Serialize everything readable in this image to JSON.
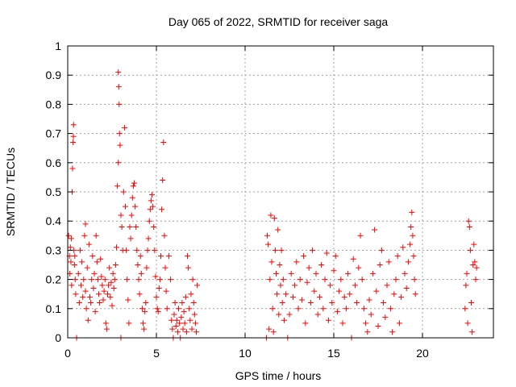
{
  "chart_data": {
    "type": "scatter",
    "title": "Day 065 of 2022, SRMTID for receiver saga",
    "xlabel": "GPS time / hours",
    "ylabel": "SRMTID / TECUs",
    "xlim": [
      0,
      24
    ],
    "ylim": [
      0,
      1
    ],
    "xticks": [
      0,
      5,
      10,
      15,
      20
    ],
    "yticks": [
      0,
      0.1,
      0.2,
      0.3,
      0.4,
      0.5,
      0.6,
      0.7,
      0.8,
      0.9,
      1
    ],
    "xtick_labels": [
      "0",
      "5",
      "10",
      "15",
      "20"
    ],
    "ytick_labels": [
      "0",
      "0.1",
      "0.2",
      "0.3",
      "0.4",
      "0.5",
      "0.6",
      "0.7",
      "0.8",
      "0.9",
      "1"
    ],
    "grid": true,
    "marker": "+",
    "color": "#ff0000",
    "series": [
      {
        "name": "SRMTID",
        "points": [
          [
            0.05,
            0.35
          ],
          [
            0.1,
            0.28
          ],
          [
            0.12,
            0.22
          ],
          [
            0.15,
            0.31
          ],
          [
            0.18,
            0.26
          ],
          [
            0.2,
            0.34
          ],
          [
            0.22,
            0.18
          ],
          [
            0.25,
            0.5
          ],
          [
            0.27,
            0.58
          ],
          [
            0.3,
            0.67
          ],
          [
            0.32,
            0.69
          ],
          [
            0.33,
            0.73
          ],
          [
            0.35,
            0.3
          ],
          [
            0.38,
            0.25
          ],
          [
            0.4,
            0.28
          ],
          [
            0.42,
            0.2
          ],
          [
            0.45,
            0.15
          ],
          [
            0.5,
            0.0
          ],
          [
            0.6,
            0.22
          ],
          [
            0.65,
            0.12
          ],
          [
            0.7,
            0.3
          ],
          [
            0.75,
            0.18
          ],
          [
            0.8,
            0.26
          ],
          [
            0.85,
            0.14
          ],
          [
            0.9,
            0.2
          ],
          [
            0.95,
            0.35
          ],
          [
            1.0,
            0.39
          ],
          [
            1.0,
            0.16
          ],
          [
            1.05,
            0.1
          ],
          [
            1.1,
            0.24
          ],
          [
            1.15,
            0.06
          ],
          [
            1.2,
            0.32
          ],
          [
            1.25,
            0.14
          ],
          [
            1.3,
            0.12
          ],
          [
            1.35,
            0.2
          ],
          [
            1.4,
            0.28
          ],
          [
            1.45,
            0.17
          ],
          [
            1.5,
            0.22
          ],
          [
            1.55,
            0.09
          ],
          [
            1.6,
            0.35
          ],
          [
            1.65,
            0.26
          ],
          [
            1.7,
            0.2
          ],
          [
            1.75,
            0.15
          ],
          [
            1.8,
            0.12
          ],
          [
            1.85,
            0.27
          ],
          [
            1.9,
            0.21
          ],
          [
            1.95,
            0.18
          ],
          [
            2.0,
            0.13
          ],
          [
            2.05,
            0.16
          ],
          [
            2.1,
            0.2
          ],
          [
            2.15,
            0.05
          ],
          [
            2.2,
            0.03
          ],
          [
            2.25,
            0.15
          ],
          [
            2.3,
            0.18
          ],
          [
            2.35,
            0.24
          ],
          [
            2.4,
            0.14
          ],
          [
            2.45,
            0.19
          ],
          [
            2.5,
            0.11
          ],
          [
            2.55,
            0.22
          ],
          [
            2.6,
            0.17
          ],
          [
            2.65,
            0.2
          ],
          [
            2.7,
            0.25
          ],
          [
            2.75,
            0.31
          ],
          [
            2.8,
            0.52
          ],
          [
            2.85,
            0.6
          ],
          [
            2.85,
            0.91
          ],
          [
            2.88,
            0.86
          ],
          [
            2.9,
            0.8
          ],
          [
            2.92,
            0.7
          ],
          [
            2.95,
            0.66
          ],
          [
            3.0,
            0.42
          ],
          [
            3.0,
            0.0
          ],
          [
            3.05,
            0.38
          ],
          [
            3.1,
            0.3
          ],
          [
            3.15,
            0.5
          ],
          [
            3.2,
            0.72
          ],
          [
            3.25,
            0.45
          ],
          [
            3.3,
            0.3
          ],
          [
            3.35,
            0.2
          ],
          [
            3.4,
            0.13
          ],
          [
            3.45,
            0.05
          ],
          [
            3.5,
            0.38
          ],
          [
            3.55,
            0.34
          ],
          [
            3.6,
            0.42
          ],
          [
            3.65,
            0.48
          ],
          [
            3.7,
            0.52
          ],
          [
            3.75,
            0.53
          ],
          [
            3.8,
            0.45
          ],
          [
            3.85,
            0.38
          ],
          [
            3.9,
            0.3
          ],
          [
            3.95,
            0.25
          ],
          [
            4.0,
            0.2
          ],
          [
            4.05,
            0.15
          ],
          [
            4.1,
            0.28
          ],
          [
            4.15,
            0.22
          ],
          [
            4.2,
            0.1
          ],
          [
            4.25,
            0.05
          ],
          [
            4.3,
            0.03
          ],
          [
            4.35,
            0.09
          ],
          [
            4.4,
            0.12
          ],
          [
            4.45,
            0.24
          ],
          [
            4.5,
            0.3
          ],
          [
            4.55,
            0.34
          ],
          [
            4.6,
            0.4
          ],
          [
            4.65,
            0.44
          ],
          [
            4.7,
            0.47
          ],
          [
            4.75,
            0.49
          ],
          [
            4.8,
            0.45
          ],
          [
            4.85,
            0.38
          ],
          [
            4.9,
            0.3
          ],
          [
            4.95,
            0.21
          ],
          [
            5.0,
            0.14
          ],
          [
            5.05,
            0.1
          ],
          [
            5.1,
            0.09
          ],
          [
            5.15,
            0.17
          ],
          [
            5.2,
            0.2
          ],
          [
            5.25,
            0.28
          ],
          [
            5.3,
            0.44
          ],
          [
            5.35,
            0.54
          ],
          [
            5.4,
            0.67
          ],
          [
            5.45,
            0.35
          ],
          [
            5.5,
            0.24
          ],
          [
            5.55,
            0.16
          ],
          [
            5.6,
            0.1
          ],
          [
            5.7,
            0.28
          ],
          [
            5.8,
            0.2
          ],
          [
            5.85,
            0.06
          ],
          [
            5.9,
            0.03
          ],
          [
            5.95,
            0.0
          ],
          [
            6.0,
            0.08
          ],
          [
            6.05,
            0.12
          ],
          [
            6.1,
            0.04
          ],
          [
            6.15,
            0.06
          ],
          [
            6.2,
            0.02
          ],
          [
            6.25,
            0.1
          ],
          [
            6.3,
            0.05
          ],
          [
            6.35,
            0.0
          ],
          [
            6.4,
            0.07
          ],
          [
            6.45,
            0.12
          ],
          [
            6.5,
            0.03
          ],
          [
            6.55,
            0.09
          ],
          [
            6.6,
            0.05
          ],
          [
            6.65,
            0.14
          ],
          [
            6.7,
            0.02
          ],
          [
            6.75,
            0.28
          ],
          [
            6.8,
            0.24
          ],
          [
            6.85,
            0.1
          ],
          [
            6.9,
            0.06
          ],
          [
            6.95,
            0.15
          ],
          [
            7.0,
            0.03
          ],
          [
            7.05,
            0.2
          ],
          [
            7.1,
            0.12
          ],
          [
            7.15,
            0.08
          ],
          [
            7.2,
            0.05
          ],
          [
            7.25,
            0.02
          ],
          [
            7.3,
            0.18
          ],
          [
            11.2,
            0.0
          ],
          [
            11.25,
            0.35
          ],
          [
            11.3,
            0.32
          ],
          [
            11.35,
            0.03
          ],
          [
            11.4,
            0.2
          ],
          [
            11.45,
            0.42
          ],
          [
            11.5,
            0.26
          ],
          [
            11.55,
            0.1
          ],
          [
            11.6,
            0.02
          ],
          [
            11.65,
            0.41
          ],
          [
            11.7,
            0.3
          ],
          [
            11.75,
            0.22
          ],
          [
            11.8,
            0.15
          ],
          [
            11.85,
            0.37
          ],
          [
            11.9,
            0.08
          ],
          [
            11.95,
            0.25
          ],
          [
            12.0,
            0.18
          ],
          [
            12.05,
            0.3
          ],
          [
            12.1,
            0.12
          ],
          [
            12.15,
            0.2
          ],
          [
            12.2,
            0.06
          ],
          [
            12.3,
            0.15
          ],
          [
            12.4,
            0.0
          ],
          [
            12.5,
            0.08
          ],
          [
            12.6,
            0.22
          ],
          [
            12.7,
            0.14
          ],
          [
            12.8,
            0.18
          ],
          [
            12.9,
            0.26
          ],
          [
            13.0,
            0.1
          ],
          [
            13.1,
            0.2
          ],
          [
            13.2,
            0.13
          ],
          [
            13.3,
            0.28
          ],
          [
            13.4,
            0.05
          ],
          [
            13.5,
            0.19
          ],
          [
            13.6,
            0.24
          ],
          [
            13.7,
            0.12
          ],
          [
            13.8,
            0.3
          ],
          [
            13.9,
            0.16
          ],
          [
            14.0,
            0.22
          ],
          [
            14.1,
            0.08
          ],
          [
            14.2,
            0.14
          ],
          [
            14.3,
            0.25
          ],
          [
            14.4,
            0.1
          ],
          [
            14.5,
            0.2
          ],
          [
            14.6,
            0.29
          ],
          [
            14.7,
            0.06
          ],
          [
            14.8,
            0.18
          ],
          [
            14.9,
            0.12
          ],
          [
            15.0,
            0.23
          ],
          [
            15.1,
            0.28
          ],
          [
            15.2,
            0.09
          ],
          [
            15.3,
            0.16
          ],
          [
            15.4,
            0.2
          ],
          [
            15.5,
            0.05
          ],
          [
            15.6,
            0.14
          ],
          [
            15.7,
            0.1
          ],
          [
            15.8,
            0.22
          ],
          [
            15.9,
            0.15
          ],
          [
            16.0,
            0.0
          ],
          [
            16.1,
            0.27
          ],
          [
            16.2,
            0.18
          ],
          [
            16.3,
            0.12
          ],
          [
            16.4,
            0.24
          ],
          [
            16.5,
            0.35
          ],
          [
            16.6,
            0.2
          ],
          [
            16.7,
            0.1
          ],
          [
            16.8,
            0.05
          ],
          [
            16.9,
            0.02
          ],
          [
            17.0,
            0.13
          ],
          [
            17.1,
            0.08
          ],
          [
            17.2,
            0.22
          ],
          [
            17.3,
            0.37
          ],
          [
            17.4,
            0.16
          ],
          [
            17.5,
            0.04
          ],
          [
            17.6,
            0.25
          ],
          [
            17.7,
            0.3
          ],
          [
            17.8,
            0.12
          ],
          [
            17.9,
            0.07
          ],
          [
            18.0,
            0.18
          ],
          [
            18.1,
            0.26
          ],
          [
            18.2,
            0.1
          ],
          [
            18.3,
            0.02
          ],
          [
            18.4,
            0.15
          ],
          [
            18.5,
            0.2
          ],
          [
            18.6,
            0.28
          ],
          [
            18.7,
            0.05
          ],
          [
            18.8,
            0.14
          ],
          [
            18.9,
            0.31
          ],
          [
            19.0,
            0.22
          ],
          [
            19.1,
            0.17
          ],
          [
            19.2,
            0.26
          ],
          [
            19.3,
            0.32
          ],
          [
            19.35,
            0.38
          ],
          [
            19.4,
            0.43
          ],
          [
            19.45,
            0.35
          ],
          [
            19.5,
            0.28
          ],
          [
            19.55,
            0.2
          ],
          [
            19.6,
            0.15
          ],
          [
            22.4,
            0.1
          ],
          [
            22.45,
            0.18
          ],
          [
            22.5,
            0.22
          ],
          [
            22.55,
            0.05
          ],
          [
            22.6,
            0.4
          ],
          [
            22.65,
            0.38
          ],
          [
            22.7,
            0.3
          ],
          [
            22.75,
            0.12
          ],
          [
            22.8,
            0.02
          ],
          [
            22.85,
            0.25
          ],
          [
            22.9,
            0.32
          ],
          [
            22.95,
            0.26
          ],
          [
            23.0,
            0.2
          ],
          [
            23.05,
            0.24
          ]
        ]
      }
    ]
  }
}
